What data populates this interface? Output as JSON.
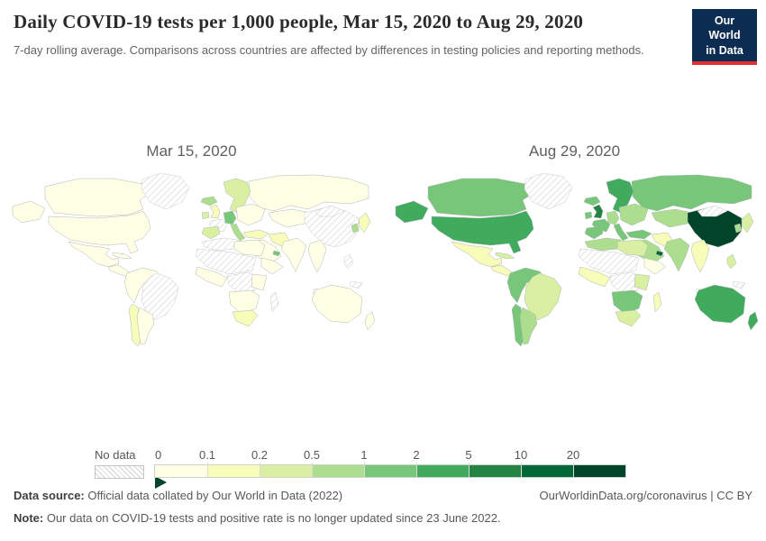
{
  "header": {
    "title": "Daily COVID-19 tests per 1,000 people, Mar 15, 2020 to Aug 29, 2020",
    "subtitle": "7-day rolling average. Comparisons across countries are affected by differences in testing policies and reporting methods.",
    "logo": {
      "line1": "Our World",
      "line2": "in Data",
      "bg_color": "#0d2c52",
      "accent_color": "#e0312f"
    }
  },
  "maps": [
    {
      "id": "mar15",
      "label": "Mar 15, 2020",
      "regions": {
        "russia": 0,
        "canada": 0,
        "usa": 0,
        "greenland": "no-data",
        "alaska": 0,
        "mexico": 0,
        "central_america": 0,
        "cuba": 0,
        "sa_nw": 0,
        "brazil": "no-data",
        "chile": 1,
        "argentina": 0,
        "iceland": 3,
        "scandinavia": 2,
        "uk": 1,
        "ireland": 2,
        "france": "no-data",
        "germany": 4,
        "iberia": 2,
        "italy": 3,
        "east_europe": 0,
        "turkey": 1,
        "kazakh": 0,
        "china": "no-data",
        "mongolia": "no-data",
        "japan": 1,
        "korea": 3,
        "iran": 1,
        "middle_east": 0,
        "uae": 4,
        "india": 0,
        "se_asia": 0,
        "philippines": "no-data",
        "indonesia": "no-data",
        "png": "no-data",
        "north_africa": "no-data",
        "libya_egypt": 0,
        "sahara_west": "no-data",
        "west_africa": 0,
        "central_africa": "no-data",
        "horn": 0,
        "east_africa": 0,
        "southern_africa": 0,
        "south_africa": 1,
        "madagascar": "no-data",
        "australia": 0,
        "nz": 0
      }
    },
    {
      "id": "aug29",
      "label": "Aug 29, 2020",
      "regions": {
        "russia": 4,
        "canada": 4,
        "usa": 5,
        "greenland": "no-data",
        "alaska": 5,
        "mexico": 1,
        "central_america": 1,
        "cuba": 2,
        "sa_nw": 4,
        "brazil": 2,
        "chile": 4,
        "argentina": 3,
        "iceland": 4,
        "scandinavia": 5,
        "uk": 6,
        "ireland": 4,
        "france": 4,
        "germany": 3,
        "iberia": 4,
        "italy": 4,
        "east_europe": 3,
        "turkey": 4,
        "kazakh": 3,
        "china": 8,
        "mongolia": "no-data",
        "japan": 2,
        "korea": 3,
        "iran": 1,
        "middle_east": 3,
        "uae": 7,
        "india": 3,
        "se_asia": 1,
        "philippines": 2,
        "indonesia": "no-data",
        "png": "no-data",
        "north_africa": 3,
        "libya_egypt": 2,
        "sahara_west": "no-data",
        "west_africa": 1,
        "central_africa": "no-data",
        "horn": 0,
        "east_africa": 2,
        "southern_africa": 4,
        "south_africa": 2,
        "madagascar": 1,
        "australia": 5,
        "nz": 5
      }
    }
  ],
  "legend": {
    "no_data_label": "No data",
    "ticks": [
      "0",
      "0.1",
      "0.2",
      "0.5",
      "1",
      "2",
      "5",
      "10",
      "20"
    ],
    "scale_colors": [
      "#ffffe5",
      "#f7fcb9",
      "#d9f0a3",
      "#addd8e",
      "#78c679",
      "#41ab5d",
      "#238443",
      "#006837",
      "#004529"
    ]
  },
  "footer": {
    "data_source_label": "Data source:",
    "data_source_text": " Official data collated by Our World in Data (2022)",
    "link_text": "OurWorldinData.org/coronavirus | CC BY",
    "note_label": "Note:",
    "note_text": " Our data on COVID-19 tests and positive rate is no longer updated since 23 June 2022."
  },
  "chart_data": {
    "type": "heatmap",
    "subtype": "choropleth-world-map-pair",
    "title": "Daily COVID-19 tests per 1,000 people",
    "unit": "tests per 1,000 people (7-day rolling average)",
    "dates": [
      "Mar 15, 2020",
      "Aug 29, 2020"
    ],
    "bins": [
      "0–0.1",
      "0.1–0.2",
      "0.2–0.5",
      "0.5–1",
      "1–2",
      "2–5",
      "5–10",
      "10–20",
      "20+"
    ],
    "legend_note": "hatched = No data",
    "series": [
      {
        "name": "Mar 15, 2020",
        "values": {
          "russia": "0–0.1",
          "canada": "0–0.1",
          "usa": "0–0.1",
          "greenland": "no data",
          "alaska": "0–0.1",
          "mexico": "0–0.1",
          "central_america": "0–0.1",
          "cuba": "0–0.1",
          "colombia_peru": "0–0.1",
          "brazil": "no data",
          "chile": "0.1–0.2",
          "argentina": "0–0.1",
          "iceland": "0.5–1",
          "scandinavia": "0.2–0.5",
          "uk": "0.1–0.2",
          "ireland": "0.2–0.5",
          "france": "no data",
          "germany_austria": "1–2",
          "spain_portugal": "0.2–0.5",
          "italy": "0.5–1",
          "eastern_europe": "0–0.1",
          "turkey": "0.1–0.2",
          "kazakhstan": "0–0.1",
          "china": "no data",
          "mongolia": "no data",
          "japan": "0.1–0.2",
          "south_korea": "0.5–1",
          "iran": "0.1–0.2",
          "saudi_arabia": "0–0.1",
          "uae": "1–2",
          "india": "0–0.1",
          "se_asia": "0–0.1",
          "philippines": "no data",
          "indonesia": "no data",
          "papua_new_guinea": "no data",
          "morocco_algeria": "no data",
          "libya_egypt": "0–0.1",
          "sahara_sahel": "no data",
          "west_africa": "0–0.1",
          "central_africa": "no data",
          "horn_of_africa": "0–0.1",
          "east_africa": "0–0.1",
          "namibia_botswana": "0–0.1",
          "south_africa": "0.1–0.2",
          "madagascar": "no data",
          "australia": "0–0.1",
          "new_zealand": "0–0.1"
        }
      },
      {
        "name": "Aug 29, 2020",
        "values": {
          "russia": "1–2",
          "canada": "1–2",
          "usa": "2–5",
          "greenland": "no data",
          "alaska": "2–5",
          "mexico": "0.1–0.2",
          "central_america": "0.1–0.2",
          "cuba": "0.2–0.5",
          "colombia_peru": "1–2",
          "brazil": "0.2–0.5",
          "chile": "1–2",
          "argentina": "0.5–1",
          "iceland": "1–2",
          "scandinavia": "2–5",
          "uk": "5–10",
          "ireland": "1–2",
          "france": "1–2",
          "germany_austria": "0.5–1",
          "spain_portugal": "1–2",
          "italy": "1–2",
          "eastern_europe": "0.5–1",
          "turkey": "1–2",
          "kazakhstan": "0.5–1",
          "china": "20+",
          "mongolia": "no data",
          "japan": "0.2–0.5",
          "south_korea": "0.5–1",
          "iran": "0.1–0.2",
          "saudi_arabia": "0.5–1",
          "uae": "10–20",
          "india": "0.5–1",
          "se_asia": "0.1–0.2",
          "philippines": "0.2–0.5",
          "indonesia": "no data",
          "papua_new_guinea": "no data",
          "morocco_algeria": "0.5–1",
          "libya_egypt": "0.2–0.5",
          "sahara_sahel": "no data",
          "west_africa": "0.1–0.2",
          "central_africa": "no data",
          "horn_of_africa": "0–0.1",
          "east_africa": "0.2–0.5",
          "namibia_botswana": "1–2",
          "south_africa": "0.2–0.5",
          "madagascar": "0.1–0.2",
          "australia": "2–5",
          "new_zealand": "2–5"
        }
      }
    ]
  }
}
